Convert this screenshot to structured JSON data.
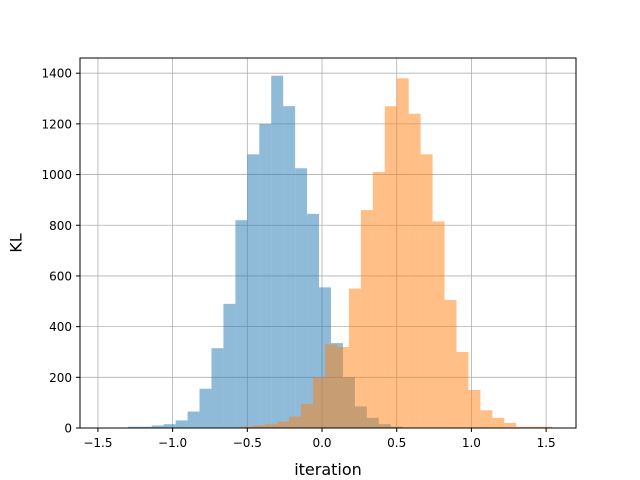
{
  "chart_data": {
    "type": "bar",
    "title": "",
    "xlabel": "iteration",
    "ylabel": "KL",
    "xlim": [
      -1.62,
      1.7
    ],
    "ylim": [
      0,
      1460
    ],
    "xticks": [
      -1.5,
      -1.0,
      -0.5,
      0.0,
      0.5,
      1.0,
      1.5
    ],
    "xtick_labels": [
      "−1.5",
      "−1.0",
      "−0.5",
      "0.0",
      "0.5",
      "1.0",
      "1.5"
    ],
    "yticks": [
      0,
      200,
      400,
      600,
      800,
      1000,
      1200,
      1400
    ],
    "ytick_labels": [
      "0",
      "200",
      "400",
      "600",
      "800",
      "1000",
      "1200",
      "1400"
    ],
    "grid": true,
    "legend": "none",
    "series": [
      {
        "color": "#1f77b4",
        "opacity": 0.5,
        "bins": [
          {
            "x0": -1.3,
            "x1": -1.22,
            "count": 5
          },
          {
            "x0": -1.22,
            "x1": -1.14,
            "count": 5
          },
          {
            "x0": -1.14,
            "x1": -1.06,
            "count": 10
          },
          {
            "x0": -1.06,
            "x1": -0.98,
            "count": 15
          },
          {
            "x0": -0.98,
            "x1": -0.9,
            "count": 30
          },
          {
            "x0": -0.9,
            "x1": -0.82,
            "count": 65
          },
          {
            "x0": -0.82,
            "x1": -0.74,
            "count": 155
          },
          {
            "x0": -0.74,
            "x1": -0.66,
            "count": 315
          },
          {
            "x0": -0.66,
            "x1": -0.58,
            "count": 490
          },
          {
            "x0": -0.58,
            "x1": -0.5,
            "count": 820
          },
          {
            "x0": -0.5,
            "x1": -0.42,
            "count": 1080
          },
          {
            "x0": -0.42,
            "x1": -0.34,
            "count": 1200
          },
          {
            "x0": -0.34,
            "x1": -0.26,
            "count": 1390
          },
          {
            "x0": -0.26,
            "x1": -0.18,
            "count": 1270
          },
          {
            "x0": -0.18,
            "x1": -0.1,
            "count": 1025
          },
          {
            "x0": -0.1,
            "x1": -0.02,
            "count": 845
          },
          {
            "x0": -0.02,
            "x1": 0.06,
            "count": 555
          },
          {
            "x0": 0.06,
            "x1": 0.14,
            "count": 335
          },
          {
            "x0": 0.14,
            "x1": 0.22,
            "count": 200
          },
          {
            "x0": 0.22,
            "x1": 0.3,
            "count": 85
          },
          {
            "x0": 0.3,
            "x1": 0.38,
            "count": 40
          },
          {
            "x0": 0.38,
            "x1": 0.46,
            "count": 15
          },
          {
            "x0": 0.46,
            "x1": 0.54,
            "count": 5
          }
        ]
      },
      {
        "color": "#ff7f0e",
        "opacity": 0.5,
        "bins": [
          {
            "x0": -0.54,
            "x1": -0.46,
            "count": 5
          },
          {
            "x0": -0.46,
            "x1": -0.38,
            "count": 10
          },
          {
            "x0": -0.38,
            "x1": -0.3,
            "count": 15
          },
          {
            "x0": -0.3,
            "x1": -0.22,
            "count": 25
          },
          {
            "x0": -0.22,
            "x1": -0.14,
            "count": 45
          },
          {
            "x0": -0.14,
            "x1": -0.06,
            "count": 95
          },
          {
            "x0": -0.06,
            "x1": 0.02,
            "count": 200
          },
          {
            "x0": 0.02,
            "x1": 0.1,
            "count": 330
          },
          {
            "x0": 0.1,
            "x1": 0.18,
            "count": 320
          },
          {
            "x0": 0.18,
            "x1": 0.26,
            "count": 550
          },
          {
            "x0": 0.26,
            "x1": 0.34,
            "count": 860
          },
          {
            "x0": 0.34,
            "x1": 0.42,
            "count": 1010
          },
          {
            "x0": 0.42,
            "x1": 0.5,
            "count": 1270
          },
          {
            "x0": 0.5,
            "x1": 0.58,
            "count": 1380
          },
          {
            "x0": 0.58,
            "x1": 0.66,
            "count": 1240
          },
          {
            "x0": 0.66,
            "x1": 0.74,
            "count": 1080
          },
          {
            "x0": 0.74,
            "x1": 0.82,
            "count": 815
          },
          {
            "x0": 0.82,
            "x1": 0.9,
            "count": 505
          },
          {
            "x0": 0.9,
            "x1": 0.98,
            "count": 300
          },
          {
            "x0": 0.98,
            "x1": 1.06,
            "count": 150
          },
          {
            "x0": 1.06,
            "x1": 1.14,
            "count": 70
          },
          {
            "x0": 1.14,
            "x1": 1.22,
            "count": 40
          },
          {
            "x0": 1.22,
            "x1": 1.3,
            "count": 20
          },
          {
            "x0": 1.3,
            "x1": 1.38,
            "count": 5
          },
          {
            "x0": 1.38,
            "x1": 1.46,
            "count": 5
          },
          {
            "x0": 1.46,
            "x1": 1.54,
            "count": 5
          }
        ]
      }
    ]
  }
}
